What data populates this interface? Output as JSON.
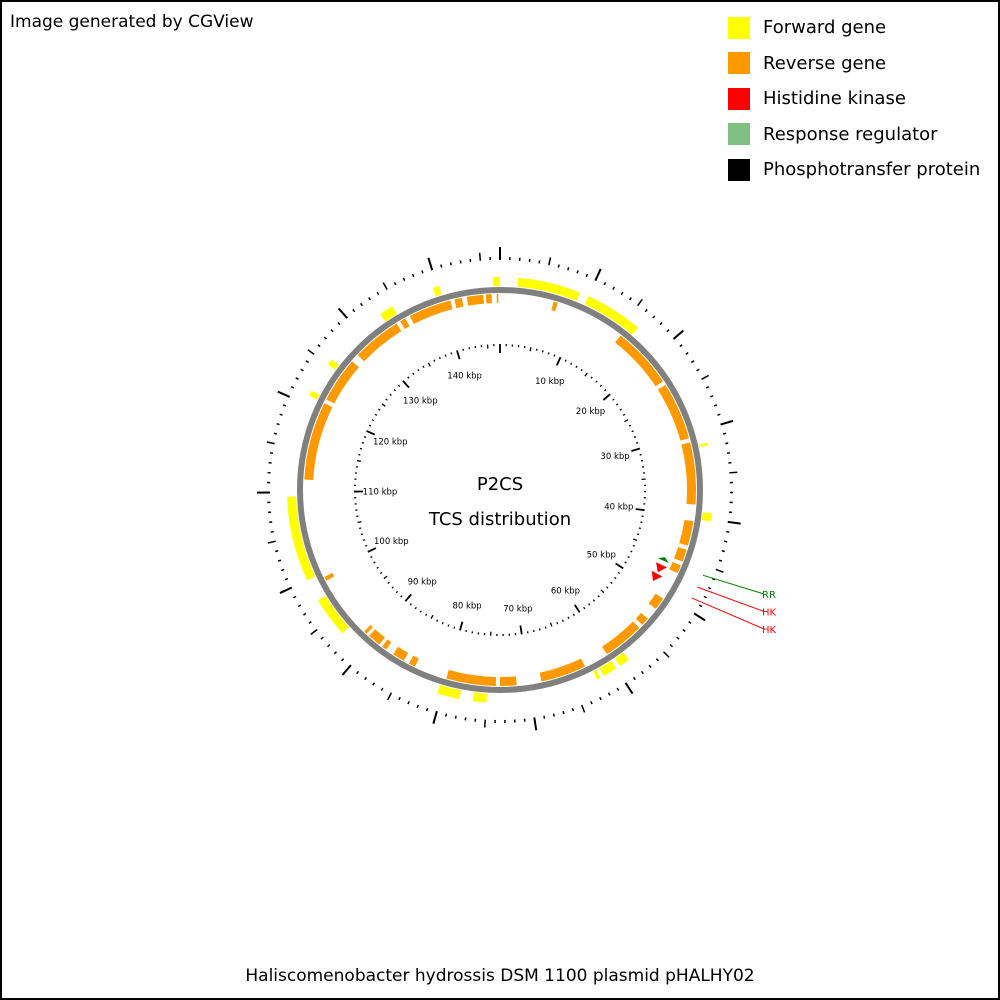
{
  "header": {
    "generator_note": "Image generated by CGView"
  },
  "legend": [
    {
      "label": "Forward gene",
      "color": "#ffff00"
    },
    {
      "label": "Reverse gene",
      "color": "#ff9900"
    },
    {
      "label": "Histidine kinase",
      "color": "#ff0000"
    },
    {
      "label": "Response regulator",
      "color": "#7fbf7f"
    },
    {
      "label": "Phosphotransfer protein",
      "color": "#000000"
    }
  ],
  "map": {
    "center_title": "P2CS",
    "center_subtitle": "TCS distribution",
    "genome_length_kbp": 147,
    "backbone_color": "#808080",
    "scale_labels": [
      "10 kbp",
      "20 kbp",
      "30 kbp",
      "40 kbp",
      "50 kbp",
      "60 kbp",
      "70 kbp",
      "80 kbp",
      "90 kbp",
      "100 kbp",
      "110 kbp",
      "120 kbp",
      "130 kbp",
      "140 kbp"
    ],
    "forward_genes": [
      [
        -0.8,
        0.0
      ],
      [
        2.0,
        9.0
      ],
      [
        10.0,
        16.5
      ],
      [
        31.5,
        31.8
      ],
      [
        39.3,
        40.2
      ],
      [
        58.3,
        59.5
      ],
      [
        60.0,
        61.6
      ],
      [
        62.0,
        62.4
      ],
      [
        75.0,
        76.5
      ],
      [
        78.0,
        80.5
      ],
      [
        93.0,
        97.5
      ],
      [
        100.0,
        109.5
      ],
      [
        121.0,
        121.6
      ],
      [
        125.0,
        125.7
      ],
      [
        133.0,
        134.6
      ],
      [
        139.5,
        140.2
      ]
    ],
    "reverse_genes": [
      [
        -0.4,
        -0.2
      ],
      [
        6.5,
        7.0
      ],
      [
        15.5,
        23.0
      ],
      [
        23.5,
        30.5
      ],
      [
        31.0,
        38.5
      ],
      [
        40.5,
        43.5
      ],
      [
        44.0,
        45.5
      ],
      [
        46.0,
        47.0
      ],
      [
        50.5,
        52.0
      ],
      [
        53.5,
        54.5
      ],
      [
        55.0,
        60.0
      ],
      [
        63.0,
        68.5
      ],
      [
        71.5,
        73.5
      ],
      [
        74.0,
        80.0
      ],
      [
        84.0,
        84.8
      ],
      [
        85.5,
        87.0
      ],
      [
        88.0,
        88.6
      ],
      [
        89.0,
        90.6
      ],
      [
        91.0,
        91.4
      ],
      [
        99.0,
        99.5
      ],
      [
        111.5,
        121.0
      ],
      [
        121.5,
        127.0
      ],
      [
        128.0,
        134.0
      ],
      [
        134.5,
        135.2
      ],
      [
        135.8,
        141.0
      ],
      [
        141.5,
        142.4
      ],
      [
        143.0,
        145.0
      ],
      [
        145.3,
        146.0
      ]
    ],
    "features": [
      {
        "type": "RR",
        "label": "RR",
        "color": "#008000",
        "start": 45.8,
        "end": 46.3
      },
      {
        "type": "HK",
        "label": "HK",
        "color": "#ff0000",
        "start": 46.9,
        "end": 48.0
      },
      {
        "type": "HK",
        "label": "HK",
        "color": "#ff0000",
        "start": 48.2,
        "end": 49.3
      }
    ]
  },
  "footer": {
    "organism": "Haliscomenobacter hydrossis DSM 1100 plasmid pHALHY02"
  }
}
